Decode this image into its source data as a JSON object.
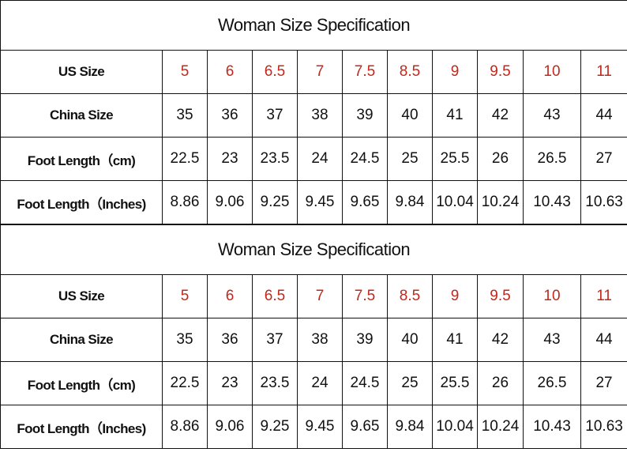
{
  "tables": [
    {
      "title": "Woman Size Specification",
      "rows": [
        [
          "US Size",
          "5",
          "6",
          "6.5",
          "7",
          "7.5",
          "8.5",
          "9",
          "9.5",
          "10",
          "11"
        ],
        [
          "China Size",
          "35",
          "36",
          "37",
          "38",
          "39",
          "40",
          "41",
          "42",
          "43",
          "44"
        ],
        [
          "Foot Length（cm)",
          "22.5",
          "23",
          "23.5",
          "24",
          "24.5",
          "25",
          "25.5",
          "26",
          "26.5",
          "27"
        ],
        [
          "Foot Length（Inches)",
          "8.86",
          "9.06",
          "9.25",
          "9.45",
          "9.65",
          "9.84",
          "10.04",
          "10.24",
          "10.43",
          "10.63"
        ]
      ]
    },
    {
      "title": "Woman Size Specification",
      "rows": [
        [
          "US Size",
          "5",
          "6",
          "6.5",
          "7",
          "7.5",
          "8.5",
          "9",
          "9.5",
          "10",
          "11"
        ],
        [
          "China Size",
          "35",
          "36",
          "37",
          "38",
          "39",
          "40",
          "41",
          "42",
          "43",
          "44"
        ],
        [
          "Foot Length（cm)",
          "22.5",
          "23",
          "23.5",
          "24",
          "24.5",
          "25",
          "25.5",
          "26",
          "26.5",
          "27"
        ],
        [
          "Foot Length（Inches)",
          "8.86",
          "9.06",
          "9.25",
          "9.45",
          "9.65",
          "9.84",
          "10.04",
          "10.24",
          "10.43",
          "10.63"
        ]
      ]
    }
  ]
}
